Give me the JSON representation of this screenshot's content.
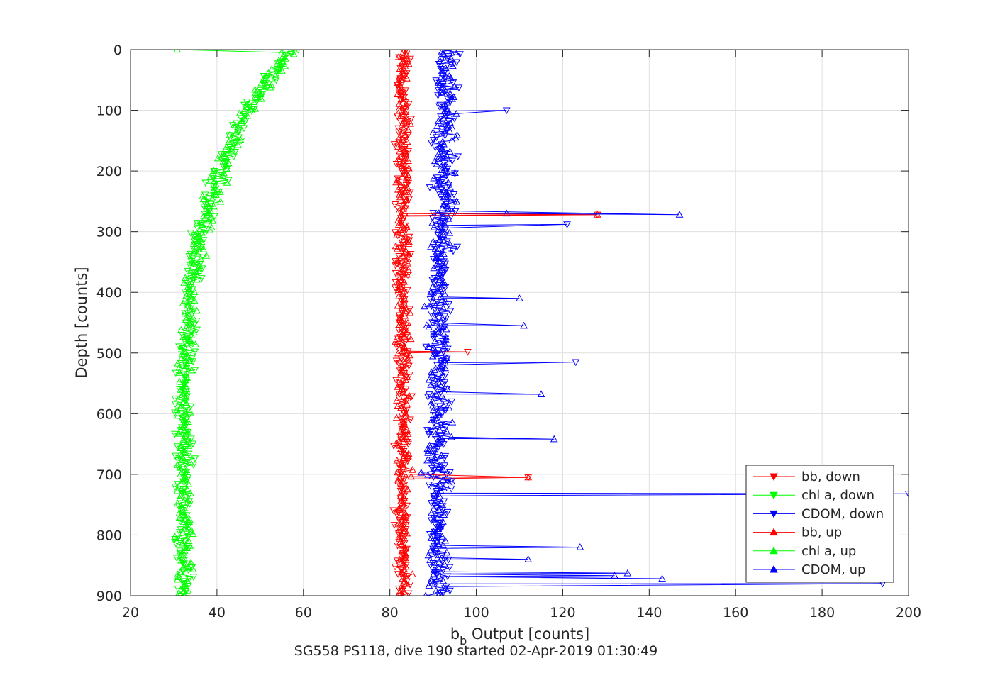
{
  "chart_data": {
    "type": "scatter",
    "title": "",
    "xlabel_base": "b",
    "xlabel_sub": "b",
    "xlabel_rest": " Output [counts]",
    "ylabel": "Depth [counts]",
    "subtitle": "SG558 PS118, dive 190 started 02-Apr-2019 01:30:49",
    "xlim": [
      20,
      200
    ],
    "ylim": [
      0,
      900
    ],
    "y_reversed": true,
    "grid": true,
    "legend_position": "bottom-right",
    "x_ticks": [
      "20",
      "40",
      "60",
      "80",
      "100",
      "120",
      "140",
      "160",
      "180",
      "200"
    ],
    "y_ticks": [
      "0",
      "100",
      "200",
      "300",
      "400",
      "500",
      "600",
      "700",
      "800",
      "900"
    ],
    "series": [
      {
        "name": "bb, down",
        "color": "#ff0000",
        "marker": "triangle-down",
        "profile": [
          [
            0,
            83
          ],
          [
            100,
            83
          ],
          [
            300,
            83
          ],
          [
            600,
            83
          ],
          [
            900,
            83
          ]
        ],
        "noise": 1.5,
        "spikes": [
          [
            272,
            128
          ],
          [
            705,
            112
          ],
          [
            498,
            98
          ]
        ]
      },
      {
        "name": "chl a, down",
        "color": "#00ff00",
        "marker": "triangle-down",
        "profile": [
          [
            0,
            57
          ],
          [
            50,
            52
          ],
          [
            100,
            47
          ],
          [
            150,
            44
          ],
          [
            200,
            41
          ],
          [
            250,
            38.5
          ],
          [
            300,
            36.5
          ],
          [
            350,
            35
          ],
          [
            400,
            34
          ],
          [
            500,
            33
          ],
          [
            600,
            32.5
          ],
          [
            700,
            32.5
          ],
          [
            800,
            32.5
          ],
          [
            900,
            32
          ]
        ],
        "noise": 1.8,
        "spikes": []
      },
      {
        "name": "CDOM, down",
        "color": "#0000ff",
        "marker": "triangle-down",
        "profile": [
          [
            0,
            93
          ],
          [
            100,
            93
          ],
          [
            300,
            92
          ],
          [
            500,
            91
          ],
          [
            700,
            91
          ],
          [
            900,
            91
          ]
        ],
        "noise": 2.5,
        "spikes": [
          [
            100,
            107
          ],
          [
            288,
            121
          ],
          [
            515,
            123
          ],
          [
            732,
            200
          ],
          [
            880,
            194
          ]
        ]
      },
      {
        "name": "bb, up",
        "color": "#ff0000",
        "marker": "triangle-up",
        "profile": [
          [
            0,
            83
          ],
          [
            100,
            83
          ],
          [
            300,
            83
          ],
          [
            600,
            83
          ],
          [
            900,
            83
          ]
        ],
        "noise": 1.5,
        "spikes": [
          [
            272,
            128
          ],
          [
            705,
            112
          ]
        ]
      },
      {
        "name": "chl a, up",
        "color": "#00ff00",
        "marker": "triangle-up",
        "profile": [
          [
            0,
            57
          ],
          [
            50,
            52
          ],
          [
            100,
            47
          ],
          [
            150,
            44
          ],
          [
            200,
            41
          ],
          [
            250,
            38.5
          ],
          [
            300,
            36.5
          ],
          [
            350,
            35
          ],
          [
            400,
            34
          ],
          [
            500,
            33
          ],
          [
            600,
            32.5
          ],
          [
            700,
            32.5
          ],
          [
            800,
            32.5
          ],
          [
            900,
            32
          ]
        ],
        "noise": 1.8,
        "spikes": []
      },
      {
        "name": "CDOM, up",
        "color": "#0000ff",
        "marker": "triangle-up",
        "profile": [
          [
            0,
            93
          ],
          [
            100,
            93
          ],
          [
            300,
            92
          ],
          [
            500,
            91
          ],
          [
            700,
            91
          ],
          [
            900,
            91
          ]
        ],
        "noise": 2.5,
        "spikes": [
          [
            272,
            147
          ],
          [
            270,
            107
          ],
          [
            410,
            110
          ],
          [
            455,
            111
          ],
          [
            568,
            115
          ],
          [
            642,
            118
          ],
          [
            840,
            112
          ],
          [
            863,
            135
          ],
          [
            867,
            132
          ],
          [
            872,
            143
          ],
          [
            820,
            124
          ]
        ]
      }
    ]
  }
}
